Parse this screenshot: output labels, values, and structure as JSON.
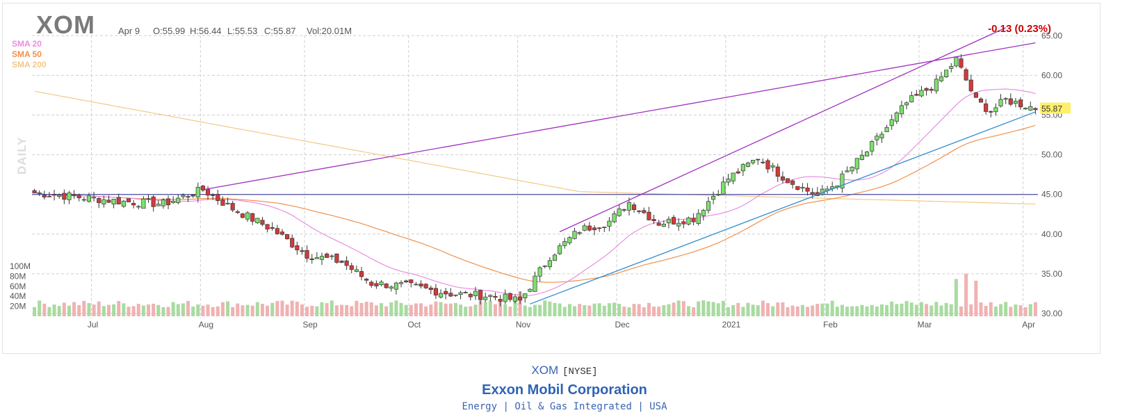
{
  "header": {
    "ticker": "XOM",
    "date": "Apr 9",
    "open": "O:55.99",
    "high": "H:56.44",
    "low": "L:55.53",
    "close": "C:55.87",
    "volume": "Vol:20.01M",
    "change": "-0.13 (0.23%)"
  },
  "legend": {
    "sma20": {
      "label": "SMA 20",
      "color": "#e88ee0"
    },
    "sma50": {
      "label": "SMA 50",
      "color": "#f0904a"
    },
    "sma200": {
      "label": "SMA 200",
      "color": "#f3c987"
    }
  },
  "side_label": "DAILY",
  "last_price_tag": "55.87",
  "footer": {
    "symbol": "XOM",
    "exchange": "[NYSE]",
    "company": "Exxon Mobil Corporation",
    "sector": "Energy",
    "industry": "Oil & Gas Integrated",
    "country": "USA",
    "sep1": "|",
    "sep2": "|"
  },
  "colors": {
    "up": "#7ee06e",
    "down": "#d43a3a",
    "vol_up": "#a8dba0",
    "vol_down": "#f0b2b2",
    "trendline": "#a030c0",
    "support": "#2a8ad0",
    "horizontal": "#5a5aa8",
    "grid": "#cfcfcf"
  },
  "chart_data": {
    "type": "candlestick",
    "x_tick_labels": [
      "Jul",
      "Aug",
      "Sep",
      "Oct",
      "Nov",
      "Dec",
      "2021",
      "Feb",
      "Mar",
      "Apr"
    ],
    "y_ticks": [
      30.0,
      35.0,
      40.0,
      45.0,
      50.0,
      55.0,
      60.0,
      65.0
    ],
    "y_tick_labels": [
      "30.00",
      "35.00",
      "40.00",
      "45.00",
      "50.00",
      "55.00",
      "60.00",
      "65.00"
    ],
    "ylim": [
      30,
      65
    ],
    "volume_ticks": [
      "20M",
      "40M",
      "60M",
      "80M",
      "100M"
    ],
    "horizontal_line": 45.0,
    "trendlines": [
      {
        "from": [
          "Aug 10",
          45.6
        ],
        "to": [
          "Apr 9",
          64.1
        ]
      },
      {
        "from": [
          "Nov 17",
          40.3
        ],
        "to": [
          "Apr 1",
          66.0
        ]
      },
      {
        "from": [
          "Oct 30",
          31.2
        ],
        "to": [
          "Apr 9",
          55.4
        ]
      }
    ],
    "key_points": [
      {
        "date": "Jun 22",
        "close": 45.2
      },
      {
        "date": "Aug 10",
        "close": 45.6
      },
      {
        "date": "Sep 1",
        "close": 42.5
      },
      {
        "date": "Oct 1",
        "close": 34.5
      },
      {
        "date": "Oct 30",
        "close": 31.5
      },
      {
        "date": "Dec 10",
        "close": 43.5
      },
      {
        "date": "Jan 15",
        "close": 50.2
      },
      {
        "date": "Jan 29",
        "close": 44.7
      },
      {
        "date": "Mar 9",
        "close": 62.0
      },
      {
        "date": "Mar 23",
        "close": 55.0
      },
      {
        "date": "Apr 9",
        "close": 55.87
      }
    ]
  }
}
